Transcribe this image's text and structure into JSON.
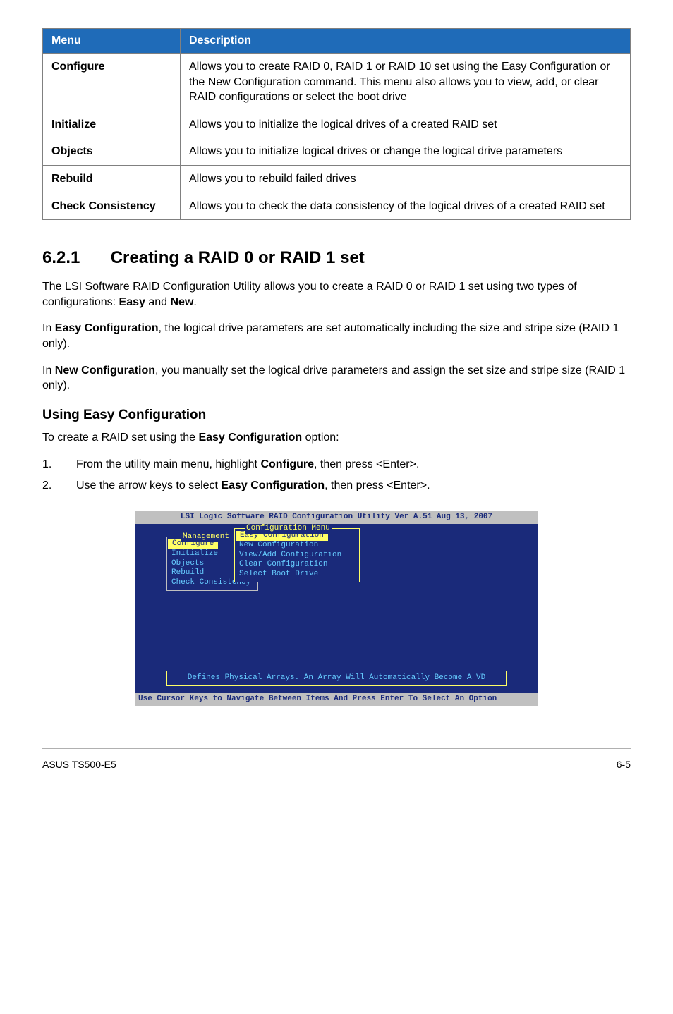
{
  "table": {
    "header_bg": "#1f6bb8",
    "header_color": "#ffffff",
    "border_color": "#808080",
    "headers": [
      "Menu",
      "Description"
    ],
    "rows": [
      {
        "label": "Configure",
        "desc": "Allows you to create RAID 0, RAID 1 or RAID 10 set using the Easy Configuration or the New Configuration command. This menu also allows you to view, add, or clear RAID configurations or select the boot drive"
      },
      {
        "label": "Initialize",
        "desc": "Allows you to initialize the logical drives of a created RAID set"
      },
      {
        "label": "Objects",
        "desc": "Allows you to initialize logical drives or change the logical drive parameters"
      },
      {
        "label": "Rebuild",
        "desc": "Allows you to rebuild failed drives"
      },
      {
        "label": "Check Consistency",
        "desc": "Allows you to check the data consistency of the logical drives of a created RAID set"
      }
    ]
  },
  "section": {
    "number": "6.2.1",
    "title": "Creating a RAID 0 or RAID 1 set",
    "p1_a": "The LSI Software RAID Configuration Utility allows you to create a RAID 0 or RAID 1 set using two types of configurations: ",
    "p1_b": "Easy",
    "p1_c": " and ",
    "p1_d": "New",
    "p1_e": ".",
    "p2_a": "In ",
    "p2_b": "Easy Configuration",
    "p2_c": ", the logical drive parameters are set automatically including the size and stripe size (RAID 1 only).",
    "p3_a": "In ",
    "p3_b": "New Configuration",
    "p3_c": ", you manually set the logical drive parameters and assign the set size and stripe size (RAID 1 only)."
  },
  "subsection": {
    "title": "Using Easy Configuration",
    "intro_a": "To create a RAID set using the ",
    "intro_b": "Easy Configuration",
    "intro_c": " option:",
    "steps": [
      {
        "n": "1.",
        "a": "From the utility main menu, highlight ",
        "b": "Configure",
        "c": ", then press <Enter>."
      },
      {
        "n": "2.",
        "a": "Use the arrow keys to select ",
        "b": "Easy Configuration",
        "c": ", then press <Enter>."
      }
    ]
  },
  "bios": {
    "bg": "#1a2a7a",
    "title_bg": "#c0c0c0",
    "title_color": "#1a2a7a",
    "text_color": "#66ccff",
    "highlight_bg": "#ffff66",
    "highlight_color": "#1a2a7a",
    "border_color": "#ffff66",
    "title": "LSI Logic Software RAID Configuration Utility Ver A.51 Aug 13, 2007",
    "mgmt_label": "Management",
    "mgmt_items": [
      "Configure",
      "Initialize",
      "Objects",
      "Rebuild",
      "Check Consistency"
    ],
    "conf_label": "Configuration Menu",
    "conf_items": [
      "Easy Configuration",
      "New Configuration",
      "View/Add Configuration",
      "Clear Configuration",
      "Select Boot Drive"
    ],
    "status": "Defines Physical Arrays. An Array Will Automatically Become A VD",
    "footer": "Use Cursor Keys to Navigate Between Items And Press Enter To Select An Option"
  },
  "footer": {
    "left": "ASUS TS500-E5",
    "right": "6-5"
  }
}
